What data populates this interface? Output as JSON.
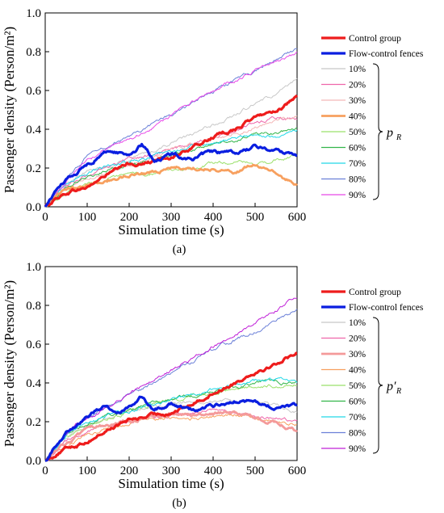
{
  "chart_data": [
    {
      "type": "line",
      "panel_label": "(a)",
      "xlabel": "Simulation time (s)",
      "ylabel": "Passenger density (Person/m²)",
      "xlim": [
        0,
        600
      ],
      "ylim": [
        0,
        1.0
      ],
      "x_ticks": [
        "0",
        "100",
        "200",
        "300",
        "400",
        "500",
        "600"
      ],
      "y_ticks": [
        "0.0",
        "0.2",
        "0.4",
        "0.6",
        "0.8",
        "1.0"
      ],
      "grid": false,
      "legend_position": "right",
      "group_param": "p",
      "group_param_sub": "R",
      "series": [
        {
          "name": "Control group",
          "color": "#ee1c1c",
          "width": 3.2,
          "x": [
            0,
            30,
            60,
            100,
            150,
            200,
            250,
            300,
            350,
            400,
            450,
            500,
            550,
            600
          ],
          "y": [
            0,
            0.05,
            0.08,
            0.1,
            0.17,
            0.22,
            0.23,
            0.26,
            0.3,
            0.36,
            0.4,
            0.46,
            0.5,
            0.56
          ]
        },
        {
          "name": "Flow-control fences",
          "color": "#0a1ee0",
          "width": 3.2,
          "x": [
            0,
            30,
            60,
            100,
            150,
            200,
            230,
            260,
            300,
            350,
            400,
            450,
            500,
            550,
            600
          ],
          "y": [
            0,
            0.1,
            0.16,
            0.22,
            0.29,
            0.27,
            0.32,
            0.24,
            0.27,
            0.25,
            0.28,
            0.27,
            0.31,
            0.29,
            0.27
          ]
        },
        {
          "name": "10%",
          "color": "#c8c8c8",
          "width": 1.0,
          "x": [
            0,
            50,
            100,
            150,
            200,
            250,
            300,
            350,
            400,
            450,
            500,
            550,
            600
          ],
          "y": [
            0,
            0.12,
            0.18,
            0.21,
            0.24,
            0.28,
            0.33,
            0.37,
            0.42,
            0.47,
            0.53,
            0.58,
            0.65
          ]
        },
        {
          "name": "20%",
          "color": "#ee66aa",
          "width": 1.0,
          "x": [
            0,
            50,
            100,
            150,
            200,
            250,
            300,
            350,
            400,
            450,
            500,
            550,
            600
          ],
          "y": [
            0,
            0.11,
            0.16,
            0.2,
            0.24,
            0.27,
            0.3,
            0.33,
            0.36,
            0.4,
            0.43,
            0.46,
            0.45
          ]
        },
        {
          "name": "30%",
          "color": "#f4b6b6",
          "width": 1.0,
          "x": [
            0,
            50,
            100,
            150,
            200,
            250,
            300,
            350,
            400,
            450,
            500,
            550,
            600
          ],
          "y": [
            0,
            0.1,
            0.15,
            0.18,
            0.22,
            0.26,
            0.29,
            0.32,
            0.35,
            0.38,
            0.41,
            0.44,
            0.46
          ]
        },
        {
          "name": "40%",
          "color": "#f7a05f",
          "width": 2.8,
          "x": [
            0,
            50,
            100,
            150,
            200,
            250,
            300,
            350,
            400,
            450,
            500,
            550,
            600
          ],
          "y": [
            0,
            0.09,
            0.12,
            0.14,
            0.16,
            0.18,
            0.2,
            0.2,
            0.2,
            0.18,
            0.22,
            0.17,
            0.11
          ]
        },
        {
          "name": "50%",
          "color": "#9be06b",
          "width": 1.0,
          "x": [
            0,
            50,
            100,
            150,
            200,
            250,
            300,
            350,
            400,
            450,
            500,
            550,
            600
          ],
          "y": [
            0,
            0.08,
            0.12,
            0.14,
            0.16,
            0.17,
            0.19,
            0.2,
            0.22,
            0.23,
            0.22,
            0.24,
            0.26
          ]
        },
        {
          "name": "60%",
          "color": "#33b54a",
          "width": 1.0,
          "x": [
            0,
            50,
            100,
            150,
            200,
            250,
            300,
            350,
            400,
            450,
            500,
            550,
            600
          ],
          "y": [
            0,
            0.1,
            0.16,
            0.19,
            0.22,
            0.24,
            0.27,
            0.29,
            0.32,
            0.34,
            0.37,
            0.38,
            0.42
          ]
        },
        {
          "name": "70%",
          "color": "#22d8e8",
          "width": 1.0,
          "x": [
            0,
            50,
            100,
            150,
            200,
            250,
            300,
            350,
            400,
            450,
            500,
            550,
            600
          ],
          "y": [
            0,
            0.11,
            0.17,
            0.21,
            0.23,
            0.26,
            0.28,
            0.31,
            0.33,
            0.35,
            0.36,
            0.37,
            0.4
          ]
        },
        {
          "name": "80%",
          "color": "#6b80d8",
          "width": 1.0,
          "x": [
            0,
            50,
            100,
            150,
            200,
            250,
            300,
            350,
            400,
            450,
            500,
            550,
            600
          ],
          "y": [
            0,
            0.14,
            0.26,
            0.3,
            0.36,
            0.42,
            0.47,
            0.53,
            0.59,
            0.65,
            0.7,
            0.76,
            0.81
          ]
        },
        {
          "name": "90%",
          "color": "#e848e8",
          "width": 1.0,
          "x": [
            0,
            50,
            100,
            150,
            200,
            250,
            300,
            350,
            400,
            450,
            500,
            550,
            600
          ],
          "y": [
            0,
            0.13,
            0.23,
            0.3,
            0.35,
            0.41,
            0.47,
            0.54,
            0.6,
            0.65,
            0.7,
            0.75,
            0.79
          ]
        }
      ]
    },
    {
      "type": "line",
      "panel_label": "(b)",
      "xlabel": "Simulation time (s)",
      "ylabel": "Passenger density (Person/m²)",
      "xlim": [
        0,
        600
      ],
      "ylim": [
        0,
        1.0
      ],
      "x_ticks": [
        "0",
        "100",
        "200",
        "300",
        "400",
        "500",
        "600"
      ],
      "y_ticks": [
        "0.0",
        "0.2",
        "0.4",
        "0.6",
        "0.8",
        "1.0"
      ],
      "grid": false,
      "legend_position": "right",
      "group_param": "p′",
      "group_param_sub": "R",
      "series": [
        {
          "name": "Control group",
          "color": "#ee1c1c",
          "width": 3.2,
          "x": [
            0,
            30,
            60,
            100,
            150,
            200,
            250,
            300,
            350,
            400,
            450,
            500,
            550,
            600
          ],
          "y": [
            0,
            0.04,
            0.07,
            0.1,
            0.16,
            0.21,
            0.23,
            0.25,
            0.29,
            0.35,
            0.4,
            0.46,
            0.5,
            0.56
          ]
        },
        {
          "name": "Flow-control fences",
          "color": "#0a1ee0",
          "width": 3.2,
          "x": [
            0,
            30,
            60,
            100,
            140,
            180,
            230,
            260,
            300,
            350,
            400,
            450,
            500,
            550,
            600
          ],
          "y": [
            0,
            0.1,
            0.17,
            0.22,
            0.29,
            0.24,
            0.33,
            0.25,
            0.3,
            0.26,
            0.28,
            0.31,
            0.3,
            0.27,
            0.28
          ]
        },
        {
          "name": "10%",
          "color": "#c8c8c8",
          "width": 1.0,
          "x": [
            0,
            50,
            100,
            150,
            200,
            250,
            300,
            350,
            400,
            450,
            500,
            550,
            600
          ],
          "y": [
            0,
            0.12,
            0.18,
            0.22,
            0.25,
            0.27,
            0.29,
            0.3,
            0.31,
            0.3,
            0.29,
            0.28,
            0.25
          ]
        },
        {
          "name": "20%",
          "color": "#ee66aa",
          "width": 1.0,
          "x": [
            0,
            50,
            100,
            150,
            200,
            250,
            300,
            350,
            400,
            450,
            500,
            550,
            600
          ],
          "y": [
            0,
            0.1,
            0.15,
            0.19,
            0.21,
            0.22,
            0.24,
            0.25,
            0.26,
            0.25,
            0.23,
            0.22,
            0.21
          ]
        },
        {
          "name": "30%",
          "color": "#f49a9a",
          "width": 2.8,
          "x": [
            0,
            50,
            100,
            150,
            200,
            250,
            300,
            350,
            400,
            450,
            500,
            550,
            600
          ],
          "y": [
            0,
            0.09,
            0.15,
            0.19,
            0.21,
            0.23,
            0.24,
            0.23,
            0.24,
            0.25,
            0.22,
            0.19,
            0.15
          ]
        },
        {
          "name": "40%",
          "color": "#f7a05f",
          "width": 1.0,
          "x": [
            0,
            50,
            100,
            150,
            200,
            250,
            300,
            350,
            400,
            450,
            500,
            550,
            600
          ],
          "y": [
            0,
            0.08,
            0.13,
            0.16,
            0.19,
            0.21,
            0.22,
            0.22,
            0.23,
            0.24,
            0.22,
            0.2,
            0.18
          ]
        },
        {
          "name": "50%",
          "color": "#9be06b",
          "width": 1.0,
          "x": [
            0,
            50,
            100,
            150,
            200,
            250,
            300,
            350,
            400,
            450,
            500,
            550,
            600
          ],
          "y": [
            0,
            0.12,
            0.18,
            0.22,
            0.25,
            0.28,
            0.31,
            0.33,
            0.35,
            0.37,
            0.38,
            0.39,
            0.4
          ]
        },
        {
          "name": "60%",
          "color": "#33b54a",
          "width": 1.0,
          "x": [
            0,
            50,
            100,
            150,
            200,
            250,
            300,
            350,
            400,
            450,
            500,
            550,
            600
          ],
          "y": [
            0,
            0.14,
            0.2,
            0.23,
            0.26,
            0.29,
            0.31,
            0.33,
            0.36,
            0.38,
            0.4,
            0.41,
            0.4
          ]
        },
        {
          "name": "70%",
          "color": "#22d8e8",
          "width": 1.0,
          "x": [
            0,
            50,
            100,
            150,
            200,
            250,
            300,
            350,
            400,
            450,
            500,
            550,
            600
          ],
          "y": [
            0,
            0.13,
            0.19,
            0.23,
            0.26,
            0.29,
            0.32,
            0.34,
            0.37,
            0.39,
            0.41,
            0.42,
            0.4
          ]
        },
        {
          "name": "80%",
          "color": "#6b80d8",
          "width": 1.0,
          "x": [
            0,
            50,
            100,
            150,
            200,
            250,
            300,
            350,
            400,
            450,
            500,
            550,
            600
          ],
          "y": [
            0,
            0.14,
            0.22,
            0.28,
            0.34,
            0.39,
            0.45,
            0.51,
            0.57,
            0.62,
            0.67,
            0.72,
            0.78
          ]
        },
        {
          "name": "90%",
          "color": "#c020d8",
          "width": 1.0,
          "x": [
            0,
            50,
            100,
            150,
            200,
            250,
            300,
            350,
            400,
            450,
            500,
            550,
            600
          ],
          "y": [
            0,
            0.15,
            0.23,
            0.28,
            0.34,
            0.4,
            0.46,
            0.53,
            0.59,
            0.65,
            0.71,
            0.78,
            0.85
          ]
        }
      ]
    }
  ]
}
